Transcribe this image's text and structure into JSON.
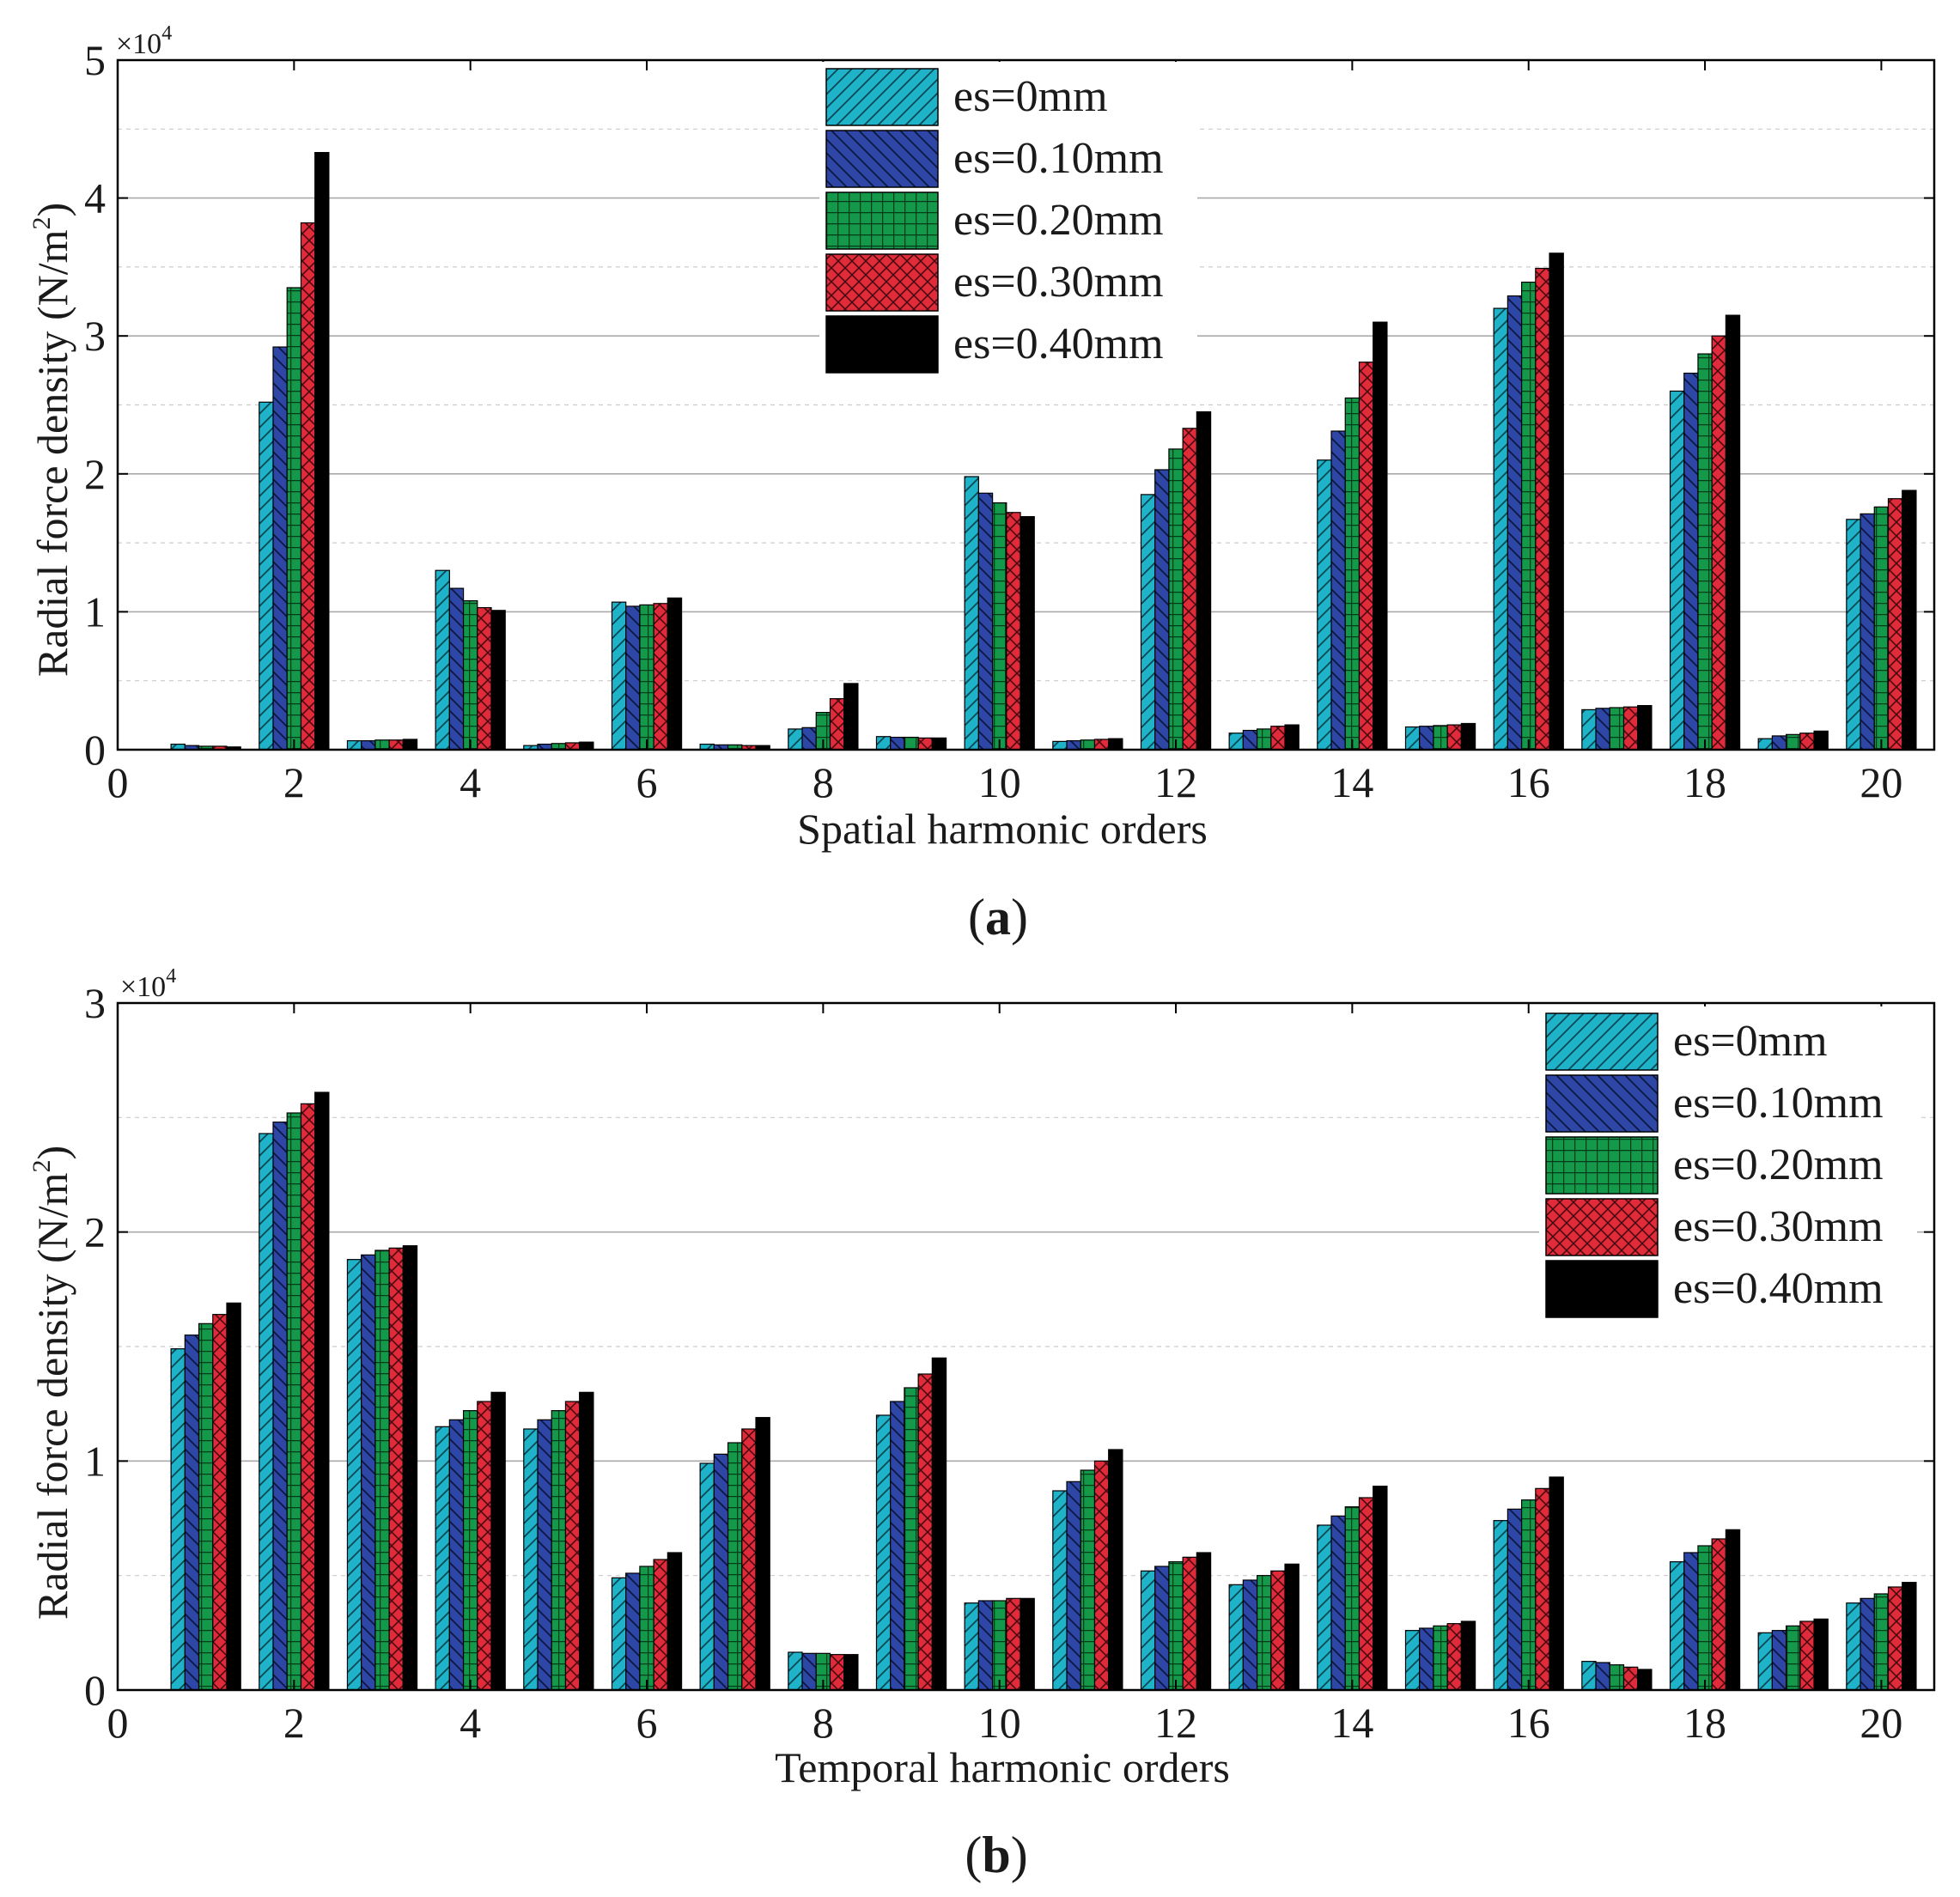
{
  "series_colors": [
    "#1fb3c9",
    "#2e47a6",
    "#14994a",
    "#e02b3a",
    "#000000"
  ],
  "chart_data": [
    {
      "type": "bar",
      "panel_label": "a",
      "xlabel": "Spatial harmonic orders",
      "ylabel": "Radial force density (N/m",
      "ylabel_sup": "2",
      "ylabel_close": ")",
      "exponent_base": "×10",
      "exponent_power": "4",
      "xlim": [
        0,
        20.6
      ],
      "ylim": [
        0,
        5
      ],
      "yticks": [
        0,
        1,
        2,
        3,
        4,
        5
      ],
      "xticks": [
        0,
        2,
        4,
        6,
        8,
        10,
        12,
        14,
        16,
        18,
        20
      ],
      "legend_position": "top-center",
      "categories": [
        1,
        2,
        3,
        4,
        5,
        6,
        7,
        8,
        9,
        10,
        11,
        12,
        13,
        14,
        15,
        16,
        17,
        18,
        19,
        20
      ],
      "series": [
        {
          "name": "es=0mm",
          "values": [
            0.04,
            2.52,
            0.065,
            1.3,
            0.03,
            1.07,
            0.04,
            0.15,
            0.095,
            1.98,
            0.06,
            1.85,
            0.12,
            2.1,
            0.165,
            3.2,
            0.29,
            2.6,
            0.08,
            1.67
          ]
        },
        {
          "name": "es=0.10mm",
          "values": [
            0.03,
            2.92,
            0.065,
            1.17,
            0.04,
            1.04,
            0.035,
            0.16,
            0.09,
            1.86,
            0.065,
            2.03,
            0.14,
            2.31,
            0.17,
            3.29,
            0.3,
            2.73,
            0.1,
            1.71
          ]
        },
        {
          "name": "es=0.20mm",
          "values": [
            0.025,
            3.35,
            0.07,
            1.08,
            0.045,
            1.05,
            0.035,
            0.27,
            0.09,
            1.79,
            0.07,
            2.18,
            0.15,
            2.55,
            0.175,
            3.39,
            0.305,
            2.87,
            0.11,
            1.76
          ]
        },
        {
          "name": "es=0.30mm",
          "values": [
            0.025,
            3.82,
            0.07,
            1.03,
            0.05,
            1.06,
            0.03,
            0.37,
            0.085,
            1.72,
            0.075,
            2.33,
            0.17,
            2.81,
            0.18,
            3.49,
            0.31,
            3.0,
            0.12,
            1.82
          ]
        },
        {
          "name": "es=0.40mm",
          "values": [
            0.02,
            4.33,
            0.075,
            1.01,
            0.055,
            1.1,
            0.03,
            0.48,
            0.085,
            1.69,
            0.08,
            2.45,
            0.18,
            3.1,
            0.19,
            3.6,
            0.32,
            3.15,
            0.135,
            1.88
          ]
        }
      ]
    },
    {
      "type": "bar",
      "panel_label": "b",
      "xlabel": "Temporal harmonic orders",
      "ylabel": "Radial force density (N/m",
      "ylabel_sup": "2",
      "ylabel_close": ")",
      "exponent_base": "×10",
      "exponent_power": "4",
      "xlim": [
        0,
        20.6
      ],
      "ylim": [
        0,
        3
      ],
      "yticks": [
        0,
        1,
        2,
        3
      ],
      "xticks": [
        0,
        2,
        4,
        6,
        8,
        10,
        12,
        14,
        16,
        18,
        20
      ],
      "legend_position": "top-right",
      "categories": [
        1,
        2,
        3,
        4,
        5,
        6,
        7,
        8,
        9,
        10,
        11,
        12,
        13,
        14,
        15,
        16,
        17,
        18,
        19,
        20
      ],
      "series": [
        {
          "name": "es=0mm",
          "values": [
            1.49,
            2.43,
            1.88,
            1.15,
            1.14,
            0.49,
            0.99,
            0.165,
            1.2,
            0.38,
            0.87,
            0.52,
            0.46,
            0.72,
            0.26,
            0.74,
            0.125,
            0.56,
            0.25,
            0.38
          ]
        },
        {
          "name": "es=0.10mm",
          "values": [
            1.55,
            2.48,
            1.9,
            1.18,
            1.18,
            0.51,
            1.03,
            0.16,
            1.26,
            0.39,
            0.91,
            0.54,
            0.48,
            0.76,
            0.27,
            0.79,
            0.12,
            0.6,
            0.26,
            0.4
          ]
        },
        {
          "name": "es=0.20mm",
          "values": [
            1.6,
            2.52,
            1.92,
            1.22,
            1.22,
            0.54,
            1.08,
            0.16,
            1.32,
            0.39,
            0.96,
            0.56,
            0.5,
            0.8,
            0.28,
            0.83,
            0.11,
            0.63,
            0.28,
            0.42
          ]
        },
        {
          "name": "es=0.30mm",
          "values": [
            1.64,
            2.56,
            1.93,
            1.26,
            1.26,
            0.57,
            1.14,
            0.155,
            1.38,
            0.4,
            1.0,
            0.58,
            0.52,
            0.84,
            0.29,
            0.88,
            0.1,
            0.66,
            0.3,
            0.45
          ]
        },
        {
          "name": "es=0.40mm",
          "values": [
            1.69,
            2.61,
            1.94,
            1.3,
            1.3,
            0.6,
            1.19,
            0.155,
            1.45,
            0.4,
            1.05,
            0.6,
            0.55,
            0.89,
            0.3,
            0.93,
            0.09,
            0.7,
            0.31,
            0.47
          ]
        }
      ]
    }
  ]
}
